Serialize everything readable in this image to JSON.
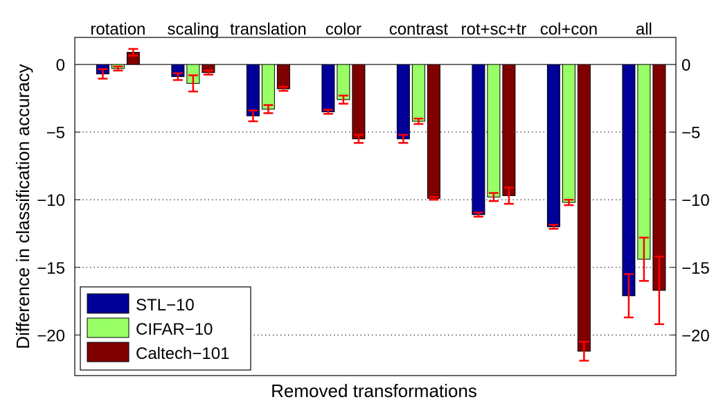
{
  "chart_data": {
    "type": "bar",
    "title": "",
    "xlabel": "Removed transformations",
    "ylabel": "Difference in classification accuracy",
    "ylim": [
      -23,
      2
    ],
    "yticks": [
      0,
      -5,
      -10,
      -15,
      -20
    ],
    "ytick_labels": [
      "0",
      "−5",
      "−10",
      "−15",
      "−20"
    ],
    "grid": "horizontal dotted",
    "legend_position": "bottom-left",
    "categories": [
      "rotation",
      "scaling",
      "translation",
      "color",
      "contrast",
      "rot+sc+tr",
      "col+con",
      "all"
    ],
    "series": [
      {
        "name": "STL−10",
        "color": "#000099",
        "values": [
          -0.7,
          -0.9,
          -3.8,
          -3.5,
          -5.5,
          -11.1,
          -12.0,
          -17.1
        ],
        "errors": [
          0.35,
          0.25,
          0.4,
          0.15,
          0.3,
          0.15,
          0.15,
          1.6
        ]
      },
      {
        "name": "CIFAR−10",
        "color": "#99ff66",
        "values": [
          -0.3,
          -1.4,
          -3.3,
          -2.6,
          -4.2,
          -9.8,
          -10.2,
          -14.4
        ],
        "errors": [
          0.15,
          0.6,
          0.3,
          0.3,
          0.2,
          0.3,
          0.2,
          1.6
        ]
      },
      {
        "name": "Caltech−101",
        "color": "#800000",
        "values": [
          0.9,
          -0.6,
          -1.8,
          -5.5,
          -9.9,
          -9.7,
          -21.2,
          -16.7
        ],
        "errors": [
          0.25,
          0.15,
          0.15,
          0.3,
          0.1,
          0.6,
          0.7,
          2.5
        ]
      }
    ],
    "error_bar_color": "#ff0000"
  }
}
